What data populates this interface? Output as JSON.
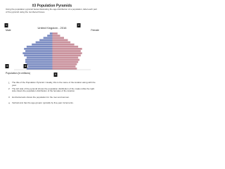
{
  "header": {
    "title": "#3 Population Pyramids",
    "instructions": "Using the population pyramid below illustrating the age distribution of a population, label each part of the pyramid using the numbered boxes."
  },
  "markers": [
    "1",
    "2",
    "3",
    "4",
    "5"
  ],
  "chart_data": {
    "type": "pyramid",
    "title": "United Kingdom - 2016",
    "left_label": "Male",
    "right_label": "Female",
    "xlabel": "Population (in millions)",
    "categories": [
      null,
      null,
      null,
      null,
      null,
      null,
      null,
      null,
      null,
      null,
      null,
      null,
      null,
      null,
      null,
      null,
      null
    ],
    "xlim": [
      0,
      3
    ],
    "series": [
      {
        "name": "Male",
        "color": "#7b8cc2",
        "values": [
          0.2,
          0.4,
          0.7,
          1.0,
          1.3,
          1.6,
          2.0,
          2.2,
          2.1,
          2.3,
          2.2,
          2.0,
          2.1,
          2.1,
          2.0,
          1.9,
          2.0
        ]
      },
      {
        "name": "Female",
        "color": "#c9919c",
        "values": [
          0.4,
          0.6,
          0.9,
          1.2,
          1.4,
          1.7,
          2.0,
          2.3,
          2.2,
          2.3,
          2.2,
          2.0,
          2.1,
          2.0,
          1.9,
          1.8,
          1.9
        ]
      }
    ]
  },
  "list": [
    "The title of the Population Pyramid. Usually, this is the name of the location along with the year.",
    "The left side of the pyramid shows the population distribution of the males while the right side shows the population distribution of the females of the location.",
    "Horizontal axis shows the population for the men and women.",
    "Vertical axis has the age groups: typically by five-year increments."
  ]
}
